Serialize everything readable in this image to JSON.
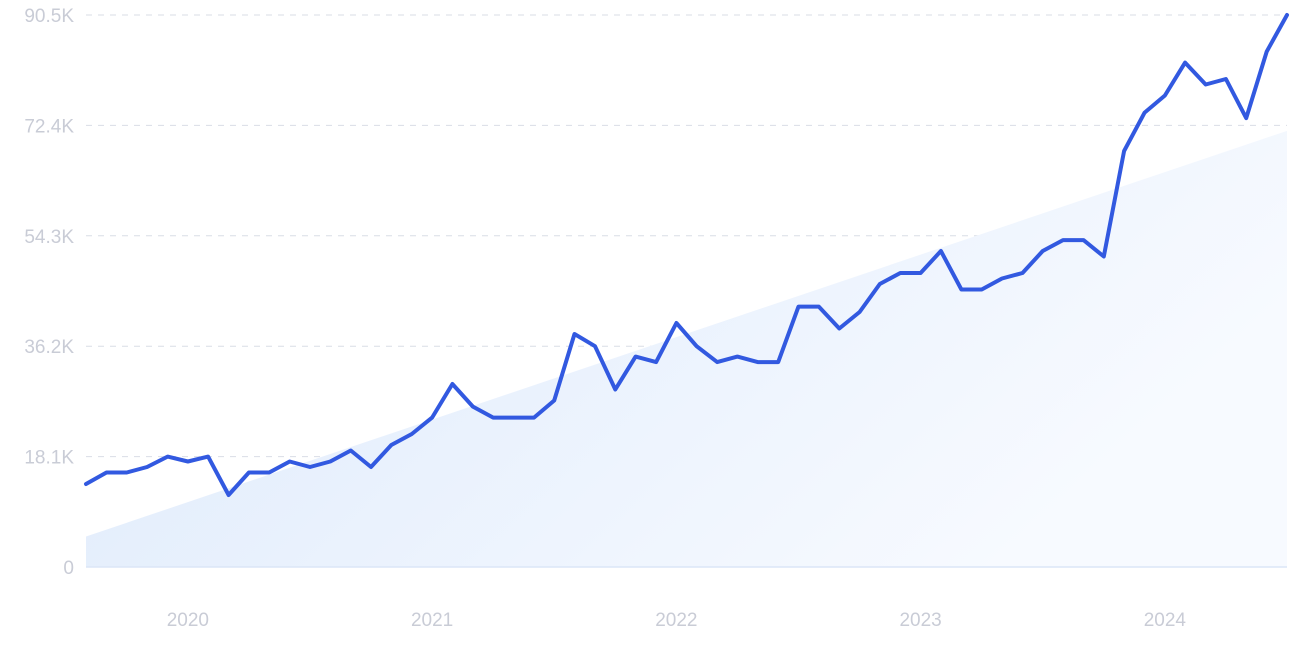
{
  "chart_data": {
    "type": "line",
    "title": "",
    "xlabel": "",
    "ylabel": "",
    "ylim": [
      0,
      90500
    ],
    "y_ticks": [
      {
        "value": 0,
        "label": "0"
      },
      {
        "value": 18100,
        "label": "18.1K"
      },
      {
        "value": 36200,
        "label": "36.2K"
      },
      {
        "value": 54300,
        "label": "54.3K"
      },
      {
        "value": 72400,
        "label": "72.4K"
      },
      {
        "value": 90500,
        "label": "90.5K"
      }
    ],
    "x_ticks": [
      {
        "value": 2020.0,
        "label": "2020"
      },
      {
        "value": 2021.0,
        "label": "2021"
      },
      {
        "value": 2022.0,
        "label": "2022"
      },
      {
        "value": 2023.0,
        "label": "2023"
      },
      {
        "value": 2024.0,
        "label": "2024"
      }
    ],
    "xlim": [
      2019.583,
      2024.5
    ],
    "grid": "horizontal dashed",
    "line_color": "#3259e0",
    "trend_fill_color": "#dbe9fb",
    "series": [
      {
        "x": [
          2019.583,
          2019.667,
          2019.75,
          2019.833,
          2019.917,
          2020.0,
          2020.083,
          2020.167,
          2020.25,
          2020.333,
          2020.417,
          2020.5,
          2020.583,
          2020.667,
          2020.75,
          2020.833,
          2020.917,
          2021.0,
          2021.083,
          2021.167,
          2021.25,
          2021.333,
          2021.417,
          2021.5,
          2021.583,
          2021.667,
          2021.75,
          2021.833,
          2021.917,
          2022.0,
          2022.083,
          2022.167,
          2022.25,
          2022.333,
          2022.417,
          2022.5,
          2022.583,
          2022.667,
          2022.75,
          2022.833,
          2022.917,
          2023.0,
          2023.083,
          2023.167,
          2023.25,
          2023.333,
          2023.417,
          2023.5,
          2023.583,
          2023.667,
          2023.75,
          2023.833,
          2023.917,
          2024.0,
          2024.083,
          2024.167,
          2024.25,
          2024.333,
          2024.417,
          2024.5
        ],
        "values": [
          13600,
          15500,
          15500,
          16400,
          18100,
          17300,
          18100,
          11800,
          15500,
          15500,
          17300,
          16400,
          17300,
          19100,
          16400,
          20000,
          21800,
          24500,
          30000,
          26300,
          24500,
          24500,
          24500,
          27300,
          38200,
          36200,
          29100,
          34500,
          33600,
          40000,
          36200,
          33600,
          34500,
          33600,
          33600,
          42700,
          42700,
          39100,
          41800,
          46400,
          48200,
          48200,
          51800,
          45500,
          45500,
          47300,
          48200,
          51800,
          53600,
          53600,
          50900,
          68200,
          74500,
          77300,
          82700,
          79100,
          80000,
          73600,
          84500,
          90500
        ]
      }
    ],
    "trend": {
      "start": 5000,
      "end": 71500
    }
  }
}
